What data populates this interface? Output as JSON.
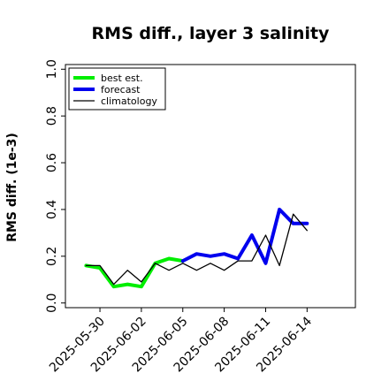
{
  "chart_data": {
    "type": "line",
    "title": "RMS diff., layer 3 salinity",
    "xlabel": "",
    "ylabel": "RMS diff. (1e-3)",
    "ylim": [
      -0.02,
      1.02
    ],
    "yticks": [
      0.0,
      0.2,
      0.4,
      0.6,
      0.8,
      1.0
    ],
    "ytick_labels": [
      "0.0",
      "0.2",
      "0.4",
      "0.6",
      "0.8",
      "1.0"
    ],
    "xlim": [
      -1.5,
      19.5
    ],
    "xticks": [
      1,
      4,
      7,
      10,
      13,
      16
    ],
    "xtick_labels": [
      "2025-05-30",
      "2025-06-02",
      "2025-06-05",
      "2025-06-08",
      "2025-06-11",
      "2025-06-14"
    ],
    "highlight_tick_label": "2025-06-05",
    "highlight_color": "#228B22",
    "grid": false,
    "legend_position": "top-left",
    "series": [
      {
        "name": "best est.",
        "color": "#00ee00",
        "x": [
          0,
          1,
          2,
          3,
          4,
          5,
          6,
          7
        ],
        "y": [
          0.16,
          0.15,
          0.07,
          0.08,
          0.07,
          0.17,
          0.19,
          0.18
        ]
      },
      {
        "name": "forecast",
        "color": "#0000ee",
        "x": [
          7,
          8,
          9,
          10,
          11,
          12,
          13,
          14,
          15,
          16
        ],
        "y": [
          0.18,
          0.21,
          0.2,
          0.21,
          0.19,
          0.29,
          0.17,
          0.4,
          0.34,
          0.34
        ]
      },
      {
        "name": "climatology",
        "color": "#000000",
        "x": [
          0,
          1,
          2,
          3,
          4,
          5,
          6,
          7,
          8,
          9,
          10,
          11,
          12,
          13,
          14,
          15,
          16
        ],
        "y": [
          0.16,
          0.16,
          0.08,
          0.14,
          0.09,
          0.17,
          0.14,
          0.17,
          0.14,
          0.17,
          0.14,
          0.18,
          0.18,
          0.29,
          0.16,
          0.38,
          0.31
        ]
      }
    ]
  }
}
